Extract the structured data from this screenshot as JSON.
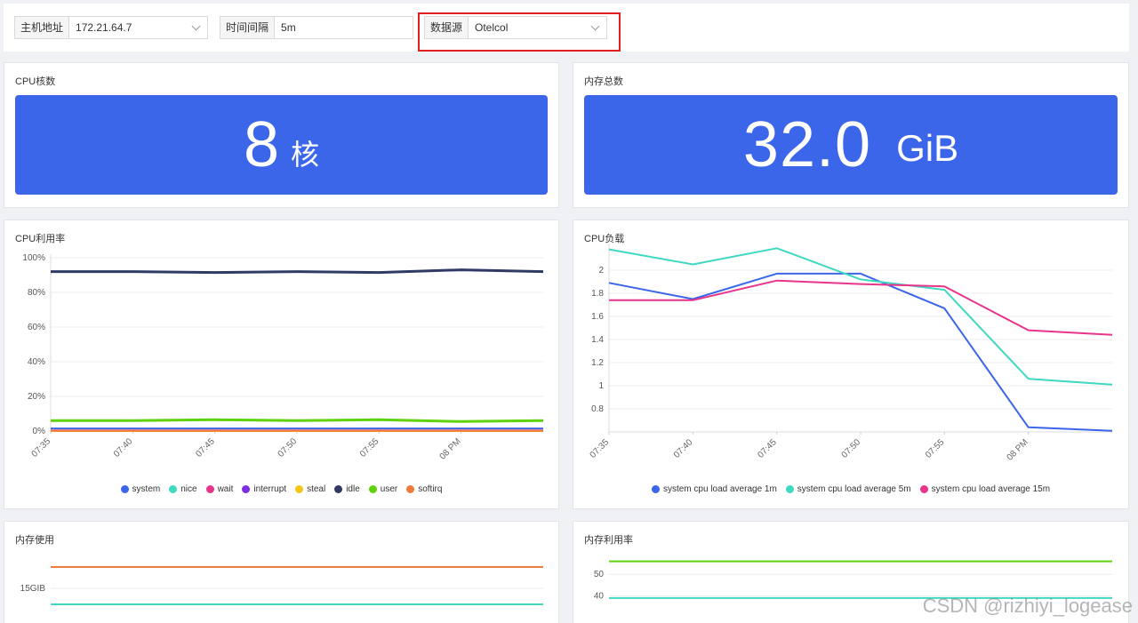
{
  "filters": {
    "host": {
      "label": "主机地址",
      "value": "172.21.64.7"
    },
    "interval": {
      "label": "时间间隔",
      "value": "5m"
    },
    "datasource": {
      "label": "数据源",
      "value": "Otelcol"
    }
  },
  "cpu_cores": {
    "title": "CPU核数",
    "value": "8",
    "unit": "核"
  },
  "mem_total": {
    "title": "内存总数",
    "value": "32.0",
    "unit": "GiB"
  },
  "cpu_usage": {
    "title": "CPU利用率"
  },
  "cpu_load": {
    "title": "CPU负载"
  },
  "mem_used": {
    "title": "内存使用"
  },
  "mem_rate": {
    "title": "内存利用率"
  },
  "colors": {
    "system": "#3b66ea",
    "nice": "#3fd8c0",
    "wait": "#e8348a",
    "interrupt": "#7b2ee6",
    "steal": "#f5c518",
    "idle": "#2f3b64",
    "user": "#5ed20c",
    "softirq": "#f07a3a",
    "accent": "#3b66ea"
  },
  "chart_data": [
    {
      "type": "line",
      "title": "CPU利用率",
      "categories": [
        "07:35",
        "07:40",
        "07:45",
        "07:50",
        "07:55",
        "08 PM",
        ""
      ],
      "yticks": [
        "0%",
        "20%",
        "40%",
        "60%",
        "80%",
        "100%"
      ],
      "ylim": [
        0,
        100
      ],
      "series": [
        {
          "name": "system",
          "color": "#3b66ea",
          "values": [
            1.5,
            1.5,
            1.5,
            1.5,
            1.5,
            1.5,
            1.5
          ]
        },
        {
          "name": "nice",
          "color": "#3fd8c0",
          "values": [
            0.1,
            0.1,
            0.1,
            0.1,
            0.1,
            0.1,
            0.1
          ]
        },
        {
          "name": "wait",
          "color": "#e8348a",
          "values": [
            0.3,
            0.3,
            0.3,
            0.3,
            0.3,
            0.3,
            0.3
          ]
        },
        {
          "name": "interrupt",
          "color": "#7b2ee6",
          "values": [
            0,
            0,
            0,
            0,
            0,
            0,
            0
          ]
        },
        {
          "name": "steal",
          "color": "#f5c518",
          "values": [
            0,
            0,
            0,
            0,
            0,
            0,
            0
          ]
        },
        {
          "name": "idle",
          "color": "#2f3b64",
          "values": [
            92,
            92,
            91.5,
            92,
            91.5,
            93,
            92
          ]
        },
        {
          "name": "user",
          "color": "#5ed20c",
          "values": [
            6,
            6,
            6.5,
            6,
            6.5,
            5.5,
            6
          ]
        },
        {
          "name": "softirq",
          "color": "#f07a3a",
          "values": [
            0.1,
            0.1,
            0.1,
            0.1,
            0.1,
            0.1,
            0.1
          ]
        }
      ]
    },
    {
      "type": "line",
      "title": "CPU负载",
      "categories": [
        "07:35",
        "07:40",
        "07:45",
        "07:50",
        "07:55",
        "08 PM",
        ""
      ],
      "yticks": [
        "0.8",
        "1",
        "1.2",
        "1.4",
        "1.6",
        "1.8",
        "2"
      ],
      "ylim": [
        0.6,
        2.2
      ],
      "series": [
        {
          "name": "system cpu load average 1m",
          "color": "#3b66ea",
          "values": [
            1.89,
            1.75,
            1.97,
            1.97,
            1.67,
            0.64,
            0.61
          ]
        },
        {
          "name": "system cpu load average 5m",
          "color": "#3fd8c0",
          "values": [
            2.18,
            2.05,
            2.19,
            1.92,
            1.83,
            1.06,
            1.01
          ]
        },
        {
          "name": "system cpu load average 15m",
          "color": "#e8348a",
          "values": [
            1.74,
            1.74,
            1.91,
            1.88,
            1.86,
            1.48,
            1.44
          ]
        }
      ]
    },
    {
      "type": "line",
      "title": "内存使用",
      "yticks": [
        "15GIB"
      ],
      "series": [
        {
          "color": "#f07a3a",
          "values": [
            23,
            23,
            23,
            23,
            23,
            23,
            23
          ]
        },
        {
          "color": "#3fd8c0",
          "values": [
            9,
            9,
            9,
            9,
            9,
            9,
            9
          ]
        }
      ]
    },
    {
      "type": "line",
      "title": "内存利用率",
      "yticks": [
        "40",
        "50"
      ],
      "series": [
        {
          "color": "#5ed20c",
          "values": [
            56,
            56,
            56,
            56,
            56,
            56,
            56
          ]
        },
        {
          "color": "#3fd8c0",
          "values": [
            39,
            39,
            39,
            39,
            39,
            39,
            39
          ]
        }
      ]
    }
  ],
  "watermark": "CSDN @rizhiyi_logease"
}
